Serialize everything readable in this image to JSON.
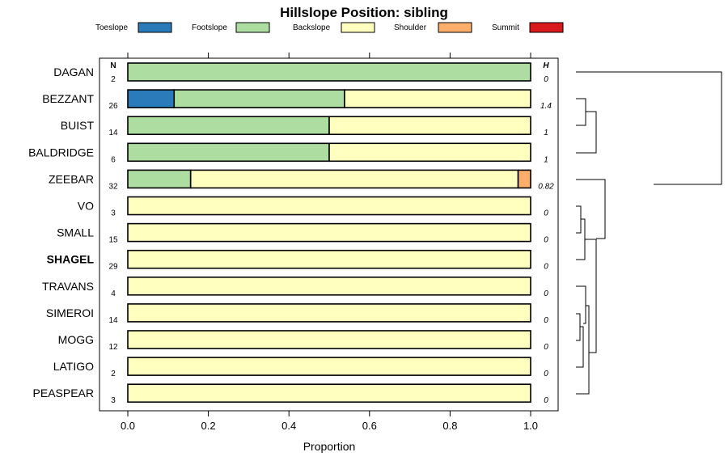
{
  "chart_data": {
    "type": "bar",
    "orientation": "horizontal",
    "stacked": true,
    "title": "Hillslope Position: sibling",
    "xlabel": "Proportion",
    "xlim": [
      0,
      1
    ],
    "x_ticks": [
      "0.0",
      "0.2",
      "0.4",
      "0.6",
      "0.8",
      "1.0"
    ],
    "legend_position": "top",
    "n_header": "N",
    "h_header": "H",
    "highlight_category": "SHAGEL",
    "categories": [
      "DAGAN",
      "BEZZANT",
      "BUIST",
      "BALDRIDGE",
      "ZEEBAR",
      "VO",
      "SMALL",
      "SHAGEL",
      "TRAVANS",
      "SIMEROI",
      "MOGG",
      "LATIGO",
      "PEASPEAR"
    ],
    "n": [
      "2",
      "26",
      "14",
      "6",
      "32",
      "3",
      "15",
      "29",
      "4",
      "14",
      "12",
      "2",
      "3"
    ],
    "h": [
      "0",
      "1.4",
      "1",
      "1",
      "0.82",
      "0",
      "0",
      "0",
      "0",
      "0",
      "0",
      "0",
      "0"
    ],
    "series": [
      {
        "name": "Toeslope",
        "color": "#2b7bba",
        "values": [
          0,
          0.115,
          0,
          0,
          0,
          0,
          0,
          0,
          0,
          0,
          0,
          0,
          0
        ]
      },
      {
        "name": "Footslope",
        "color": "#addda0",
        "values": [
          1,
          0.423,
          0.5,
          0.5,
          0.156,
          0,
          0,
          0,
          0,
          0,
          0,
          0,
          0
        ]
      },
      {
        "name": "Backslope",
        "color": "#ffffc0",
        "values": [
          0,
          0.462,
          0.5,
          0.5,
          0.813,
          1,
          1,
          1,
          1,
          1,
          1,
          1,
          1
        ]
      },
      {
        "name": "Shoulder",
        "color": "#fdae6b",
        "values": [
          0,
          0,
          0,
          0,
          0.031,
          0,
          0,
          0,
          0,
          0,
          0,
          0,
          0
        ]
      },
      {
        "name": "Summit",
        "color": "#d7191c",
        "values": [
          0,
          0,
          0,
          0,
          0,
          0,
          0,
          0,
          0,
          0,
          0,
          0,
          0
        ]
      }
    ]
  }
}
